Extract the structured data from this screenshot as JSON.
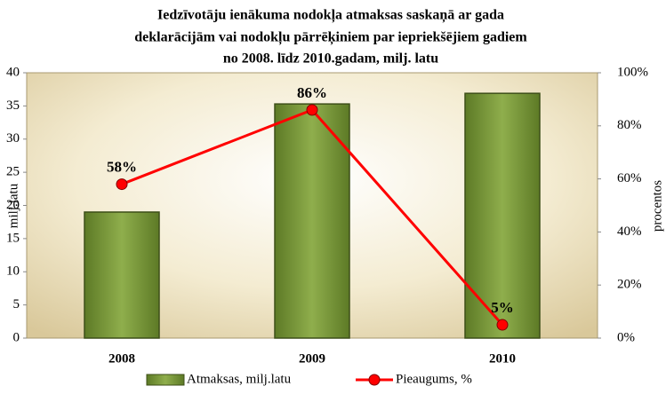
{
  "chart_data": {
    "type": "bar_line",
    "title": [
      "Iedzīvotāju ienākuma nodokļa atmaksas saskaņā ar gada",
      "deklarācijām vai nodokļu pārrēķiniem par iepriekšējiem gadiem",
      "no 2008. līdz 2010.gadam, milj. latu"
    ],
    "y_label": "milj.latu",
    "y2_label": "procentos",
    "categories": [
      "2008",
      "2009",
      "2010"
    ],
    "series": [
      {
        "name": "Atmaksas, milj.latu",
        "type": "bar",
        "color": "#7a9a3a",
        "values": [
          19,
          35.3,
          36.9
        ]
      },
      {
        "name": "Pieaugums, %",
        "type": "line",
        "axis": "y2",
        "color": "#ff0000",
        "values": [
          58,
          86,
          5
        ],
        "value_labels": [
          "58%",
          "86%",
          "5%"
        ]
      }
    ],
    "ylim": [
      0,
      40
    ],
    "yticks": [
      0,
      5,
      10,
      15,
      20,
      25,
      30,
      35,
      40
    ],
    "y2lim": [
      0,
      100
    ],
    "y2ticks": [
      {
        "value": 0,
        "label": "0%"
      },
      {
        "value": 20,
        "label": "20%"
      },
      {
        "value": 40,
        "label": "40%"
      },
      {
        "value": 60,
        "label": "60%"
      },
      {
        "value": 80,
        "label": "80%"
      },
      {
        "value": 100,
        "label": "100%"
      }
    ],
    "legend": "bottom"
  }
}
